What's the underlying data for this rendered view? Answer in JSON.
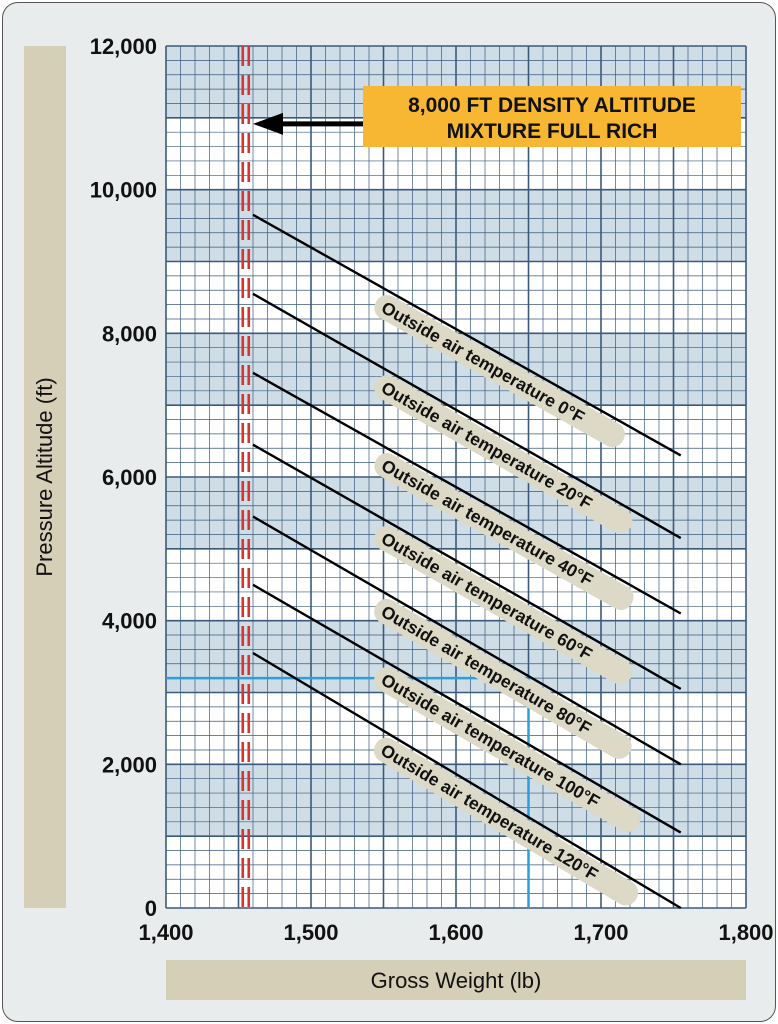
{
  "chart_data": {
    "type": "line",
    "title": "",
    "xlabel": "Gross Weight (lb)",
    "ylabel": "Pressure Altitude (ft)",
    "xlim": [
      1400,
      1800
    ],
    "ylim": [
      0,
      12000
    ],
    "x_ticks": [
      1400,
      1500,
      1600,
      1700,
      1800
    ],
    "x_tick_labels": [
      "1,400",
      "1,500",
      "1,600",
      "1,700",
      "1,800"
    ],
    "y_ticks": [
      0,
      2000,
      4000,
      6000,
      8000,
      10000,
      12000
    ],
    "y_tick_labels": [
      "0",
      "2,000",
      "4,000",
      "6,000",
      "8,000",
      "10,000",
      "12,000"
    ],
    "grid": true,
    "series": [
      {
        "name": "Outside air temperature 0°F",
        "x": [
          1460,
          1755
        ],
        "y": [
          9650,
          6300
        ]
      },
      {
        "name": "Outside air temperature 20°F",
        "x": [
          1460,
          1755
        ],
        "y": [
          8550,
          5150
        ]
      },
      {
        "name": "Outside air temperature 40°F",
        "x": [
          1460,
          1755
        ],
        "y": [
          7450,
          4100
        ]
      },
      {
        "name": "Outside air temperature 60°F",
        "x": [
          1460,
          1755
        ],
        "y": [
          6450,
          3050
        ]
      },
      {
        "name": "Outside air temperature 80°F",
        "x": [
          1460,
          1755
        ],
        "y": [
          5450,
          2000
        ]
      },
      {
        "name": "Outside air temperature 100°F",
        "x": [
          1460,
          1755
        ],
        "y": [
          4500,
          1050
        ]
      },
      {
        "name": "Outside air temperature 120°F",
        "x": [
          1460,
          1755
        ],
        "y": [
          3550,
          0
        ]
      }
    ],
    "limit_line": {
      "x": 1455
    },
    "reference_lines": {
      "weight": 1650,
      "altitude": 3200
    },
    "annotations": [
      {
        "text_lines": [
          "8,000 FT DENSITY ALTITUDE",
          "MIXTURE FULL RICH"
        ],
        "points_to": {
          "x": 1460,
          "y": 11000
        }
      }
    ],
    "colors": {
      "grid_line": "#3a5a7c",
      "grid_band": "#cfdde6",
      "series_line": "#000000",
      "limit_line": "#d8342c",
      "reference_line": "#2a9fdc",
      "callout_fill": "#f7b733",
      "label_fill": "#dcd9c6",
      "axis_band": "#d4cfb6"
    }
  }
}
